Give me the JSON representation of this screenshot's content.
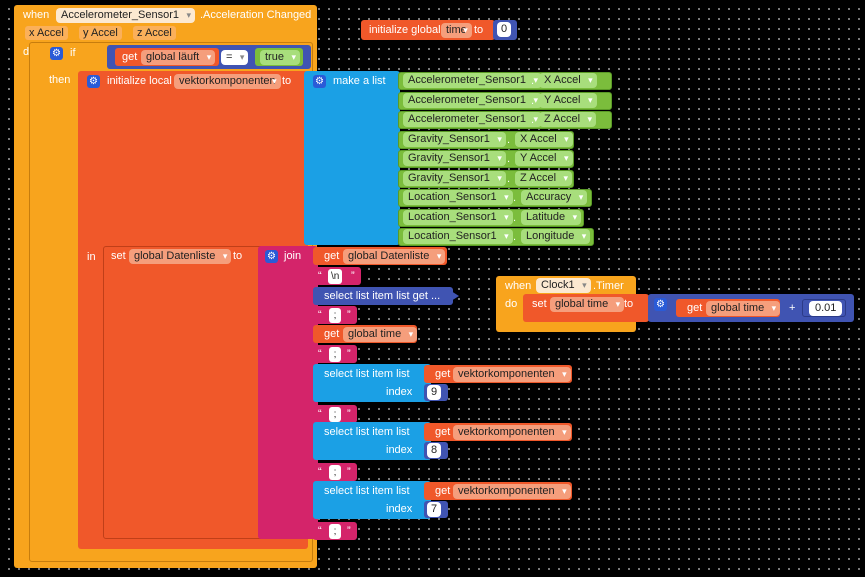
{
  "event_accel": {
    "when": "when",
    "component": "Accelerometer_Sensor1",
    "event": ".Acceleration Changed",
    "params": [
      "x Accel",
      "y Accel",
      "z Accel"
    ],
    "do": "do"
  },
  "if_block": {
    "if": "if",
    "get": "get",
    "var": "global läuft",
    "op": "=",
    "value": "true",
    "then": "then"
  },
  "local_init": {
    "label": "initialize local",
    "name": "vektorkomponenten",
    "to": "to",
    "in": "in"
  },
  "make_list": {
    "label": "make a list",
    "items": [
      {
        "component": "Accelerometer_Sensor1",
        "prop": "X Accel"
      },
      {
        "component": "Accelerometer_Sensor1",
        "prop": "Y Accel"
      },
      {
        "component": "Accelerometer_Sensor1",
        "prop": "Z Accel"
      },
      {
        "component": "Gravity_Sensor1",
        "prop": "X Accel"
      },
      {
        "component": "Gravity_Sensor1",
        "prop": "Y Accel"
      },
      {
        "component": "Gravity_Sensor1",
        "prop": "Z Accel"
      },
      {
        "component": "Location_Sensor1",
        "prop": "Accuracy"
      },
      {
        "component": "Location_Sensor1",
        "prop": "Latitude"
      },
      {
        "component": "Location_Sensor1",
        "prop": "Longitude"
      }
    ]
  },
  "set_block": {
    "set": "set",
    "var": "global Datenliste",
    "to": "to"
  },
  "join": {
    "label": "join",
    "get": "get",
    "datenliste": "global Datenliste",
    "newline": "\\n",
    "select_collapsed": "select list item  list get ...",
    "semicolon": ";",
    "time_var": "global time",
    "select_label": "select list item  list",
    "index_label": "index",
    "vektor": "vektorkomponenten",
    "indices": [
      "9",
      "8",
      "7"
    ]
  },
  "global_init": {
    "label": "initialize global",
    "name": "time",
    "to": "to",
    "value": "0"
  },
  "clock": {
    "when": "when",
    "component": "Clock1",
    "event": ".Timer",
    "do": "do",
    "set": "set",
    "var": "global time",
    "to": "to",
    "get": "get",
    "plus": "+",
    "increment": "0.01"
  },
  "colors": {
    "event": "#f8a41d",
    "variable": "#f0582a",
    "list": "#1ba0e5",
    "sensor": "#7bbd3c",
    "text": "#d4246a",
    "math": "#4054b2"
  }
}
